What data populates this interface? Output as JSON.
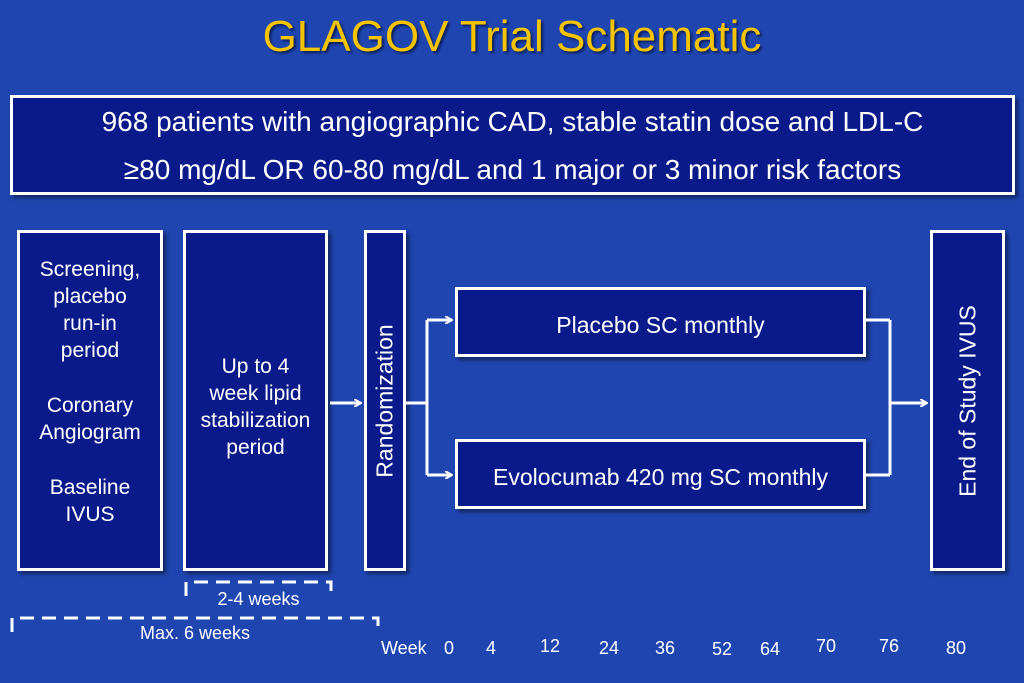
{
  "title": "GLAGOV Trial Schematic",
  "banner": {
    "line1": "968 patients with angiographic CAD, stable statin dose and LDL-C",
    "line2": "≥80 mg/dL OR 60-80 mg/dL and 1 major or 3 minor risk factors"
  },
  "screening": {
    "lines": [
      "Screening,",
      "placebo",
      "run-in",
      "period",
      "Coronary",
      "Angiogram",
      "Baseline",
      "IVUS"
    ]
  },
  "stabilization": {
    "lines": [
      "Up to 4",
      "week lipid",
      "stabilization",
      "period"
    ]
  },
  "randomization": "Randomization",
  "arms": {
    "placebo": "Placebo SC monthly",
    "evolocumab": "Evolocumab 420 mg SC monthly"
  },
  "end_of_study": "End of Study IVUS",
  "durations": {
    "short": "2-4 weeks",
    "long": "Max. 6 weeks"
  },
  "timeline": {
    "label": "Week",
    "ticks": [
      "0",
      "4",
      "12",
      "24",
      "36",
      "52",
      "64",
      "70",
      "76",
      "80"
    ]
  },
  "colors": {
    "background": "#1f45b0",
    "box_fill": "#0a1a8a",
    "title": "#f5c400"
  }
}
